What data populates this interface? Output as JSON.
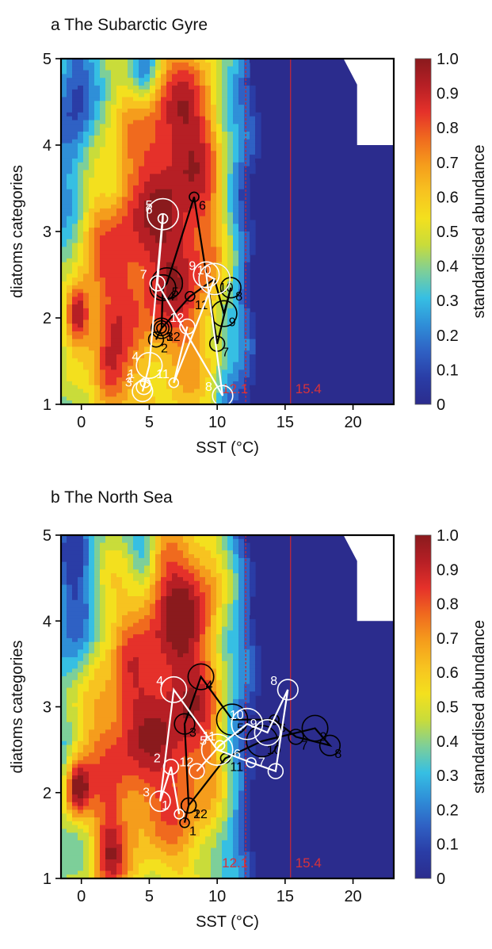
{
  "figure_title": "",
  "colorbar": {
    "label": "standardised abundance",
    "ticks": [
      "1.0",
      "0.9",
      "0.8",
      "0.7",
      "0.6",
      "0.5",
      "0.4",
      "0.3",
      "0.2",
      "0.1",
      "0"
    ],
    "colors": [
      "#2b2c8d",
      "#2a3da6",
      "#2f61c4",
      "#2f8fd8",
      "#36bfe3",
      "#7dcf99",
      "#c9dc3a",
      "#f3e01e",
      "#f7c320",
      "#f59d1c",
      "#f06a1e",
      "#e5312a",
      "#b61f25",
      "#8a1a1d"
    ]
  },
  "chart_data": [
    {
      "type": "heatmap",
      "panel_letter": "a",
      "title": "The Subarctic Gyre",
      "xlabel": "SST (°C)",
      "ylabel": "diatoms categories",
      "xticks": [
        "0",
        "5",
        "10",
        "15",
        "20"
      ],
      "yticks": [
        "1",
        "2",
        "3",
        "4",
        "5"
      ],
      "xlim": [
        -1.5,
        23
      ],
      "ylim": [
        1,
        5
      ],
      "thresholds": [
        {
          "x": 12.1,
          "label": "12.1"
        },
        {
          "x": 15.4,
          "label": "15.4"
        }
      ],
      "series": [
        {
          "color": "#000000",
          "points": [
            {
              "label": "1",
              "x": 5.9,
              "y": 1.88
            },
            {
              "label": "2",
              "x": 5.5,
              "y": 1.75
            },
            {
              "label": "3",
              "x": 5.9,
              "y": 1.88
            },
            {
              "label": "4",
              "x": 6.0,
              "y": 2.35
            },
            {
              "label": "5",
              "x": 6.3,
              "y": 2.4
            },
            {
              "label": "6",
              "x": 8.3,
              "y": 3.4
            },
            {
              "label": "7",
              "x": 10.0,
              "y": 1.7
            },
            {
              "label": "8",
              "x": 11.0,
              "y": 2.35
            },
            {
              "label": "9",
              "x": 10.5,
              "y": 2.05
            },
            {
              "label": "10",
              "x": 9.8,
              "y": 2.45
            },
            {
              "label": "11",
              "x": 8.0,
              "y": 2.25
            },
            {
              "label": "12",
              "x": 5.9,
              "y": 1.88
            }
          ]
        },
        {
          "color": "#ffffff",
          "points": [
            {
              "label": "1",
              "x": 4.7,
              "y": 1.25
            },
            {
              "label": "2",
              "x": 4.6,
              "y": 1.2
            },
            {
              "label": "3",
              "x": 4.5,
              "y": 1.15
            },
            {
              "label": "4",
              "x": 5.0,
              "y": 1.45
            },
            {
              "label": "5",
              "x": 6.0,
              "y": 3.2
            },
            {
              "label": "6",
              "x": 6.0,
              "y": 3.15
            },
            {
              "label": "7",
              "x": 5.6,
              "y": 2.4
            },
            {
              "label": "8",
              "x": 10.4,
              "y": 1.1
            },
            {
              "label": "9",
              "x": 9.2,
              "y": 2.5
            },
            {
              "label": "10",
              "x": 9.8,
              "y": 2.45
            },
            {
              "label": "11",
              "x": 6.8,
              "y": 1.25
            },
            {
              "label": "12",
              "x": 7.8,
              "y": 1.9
            }
          ]
        }
      ]
    },
    {
      "type": "heatmap",
      "panel_letter": "b",
      "title": "The North Sea",
      "xlabel": "SST (°C)",
      "ylabel": "diatoms categories",
      "xticks": [
        "0",
        "5",
        "10",
        "15",
        "20"
      ],
      "yticks": [
        "1",
        "2",
        "3",
        "4",
        "5"
      ],
      "xlim": [
        -1.5,
        23
      ],
      "ylim": [
        1,
        5
      ],
      "thresholds": [
        {
          "x": 12.1,
          "label": "12.1"
        },
        {
          "x": 15.4,
          "label": "15.4"
        }
      ],
      "series": [
        {
          "color": "#000000",
          "points": [
            {
              "label": "1",
              "x": 7.6,
              "y": 1.65
            },
            {
              "label": "2",
              "x": 7.9,
              "y": 1.85
            },
            {
              "label": "3",
              "x": 7.6,
              "y": 2.8
            },
            {
              "label": "4",
              "x": 8.8,
              "y": 3.35
            },
            {
              "label": "5",
              "x": 11.1,
              "y": 2.85
            },
            {
              "label": "6",
              "x": 14.2,
              "y": 2.85
            },
            {
              "label": "7",
              "x": 15.8,
              "y": 2.65
            },
            {
              "label": "8",
              "x": 18.3,
              "y": 2.55
            },
            {
              "label": "9",
              "x": 17.2,
              "y": 2.75
            },
            {
              "label": "10",
              "x": 13.3,
              "y": 2.6
            },
            {
              "label": "11",
              "x": 10.6,
              "y": 2.4
            },
            {
              "label": "12",
              "x": 7.9,
              "y": 1.85
            }
          ]
        },
        {
          "color": "#ffffff",
          "points": [
            {
              "label": "1",
              "x": 7.2,
              "y": 1.75
            },
            {
              "label": "2",
              "x": 6.6,
              "y": 2.3
            },
            {
              "label": "3",
              "x": 5.8,
              "y": 1.9
            },
            {
              "label": "4",
              "x": 6.8,
              "y": 3.2
            },
            {
              "label": "5",
              "x": 10.0,
              "y": 2.5
            },
            {
              "label": "6",
              "x": 12.5,
              "y": 2.35
            },
            {
              "label": "7",
              "x": 14.3,
              "y": 2.25
            },
            {
              "label": "8",
              "x": 15.2,
              "y": 3.2
            },
            {
              "label": "9",
              "x": 13.7,
              "y": 2.7
            },
            {
              "label": "10",
              "x": 12.2,
              "y": 2.8
            },
            {
              "label": "11",
              "x": 10.2,
              "y": 2.55
            },
            {
              "label": "12",
              "x": 8.5,
              "y": 2.25
            }
          ]
        }
      ]
    }
  ]
}
